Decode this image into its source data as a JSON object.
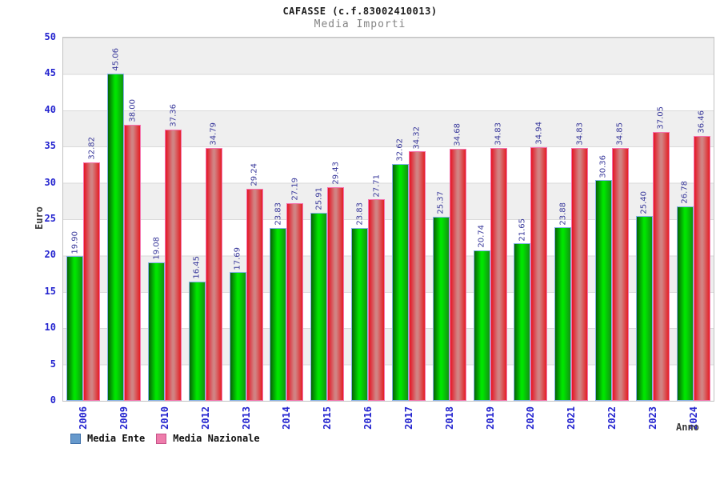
{
  "header": {
    "title": "CAFASSE (c.f.83002410013)",
    "subtitle": "Media Importi"
  },
  "chart_data": {
    "type": "bar",
    "title": "CAFASSE (c.f.83002410013)",
    "subtitle": "Media Importi",
    "xlabel": "Anno",
    "ylabel": "Euro",
    "ylim": [
      0,
      50
    ],
    "ytick_step": 5,
    "grid": "horizontal-bands",
    "legend_position": "bottom-left",
    "categories": [
      "2006",
      "2009",
      "2010",
      "2012",
      "2013",
      "2014",
      "2015",
      "2016",
      "2017",
      "2018",
      "2019",
      "2020",
      "2021",
      "2022",
      "2023",
      "2024"
    ],
    "series": [
      {
        "name": "Media Ente",
        "values": [
          19.9,
          45.06,
          19.08,
          16.45,
          17.69,
          23.83,
          25.91,
          23.83,
          32.62,
          25.37,
          20.74,
          21.65,
          23.88,
          30.36,
          25.4,
          26.78
        ],
        "legend_color": "#6699cc",
        "legend_border": "#3d6fa8",
        "bar_colors": {
          "left": "#076307",
          "mid": "#00e400",
          "right": "#129212",
          "border": "#86b2e8"
        }
      },
      {
        "name": "Media Nazionale",
        "values": [
          32.82,
          38.0,
          37.36,
          34.79,
          29.24,
          27.19,
          29.43,
          27.71,
          34.32,
          34.68,
          34.83,
          34.94,
          34.83,
          34.85,
          37.05,
          36.46
        ],
        "legend_color": "#ee7cab",
        "legend_border": "#c65287",
        "bar_colors": {
          "left": "#e51524",
          "mid": "#d18383",
          "right": "#e41e24",
          "border": "#f573ae"
        }
      }
    ],
    "value_label_color": "#39399b",
    "axis_tick_color": "#2424cf",
    "axis_title_color": "#3d3d3d"
  }
}
